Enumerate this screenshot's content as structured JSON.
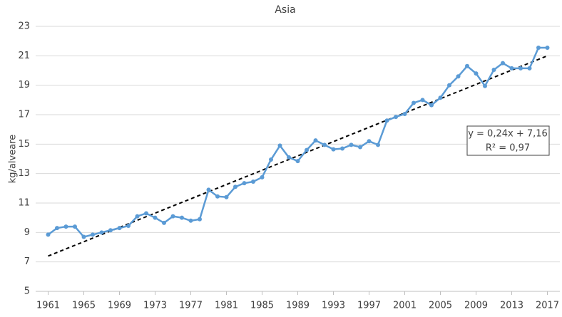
{
  "chart_data": {
    "type": "line",
    "title": "Asia",
    "y_label": "kg/alveare",
    "x": [
      1961,
      1962,
      1963,
      1964,
      1965,
      1966,
      1967,
      1968,
      1969,
      1970,
      1971,
      1972,
      1973,
      1974,
      1975,
      1976,
      1977,
      1978,
      1979,
      1980,
      1981,
      1982,
      1983,
      1984,
      1985,
      1986,
      1987,
      1988,
      1989,
      1990,
      1991,
      1992,
      1993,
      1994,
      1995,
      1996,
      1997,
      1998,
      1999,
      2000,
      2001,
      2002,
      2003,
      2004,
      2005,
      2006,
      2007,
      2008,
      2009,
      2010,
      2011,
      2012,
      2013,
      2014,
      2015,
      2016,
      2017
    ],
    "series": [
      {
        "name": "Asia",
        "color": "#5b9bd5",
        "values": [
          8.85,
          9.3,
          9.4,
          9.4,
          8.7,
          8.85,
          9.0,
          9.15,
          9.3,
          9.45,
          10.1,
          10.3,
          10.0,
          9.65,
          10.1,
          10.0,
          9.8,
          9.9,
          11.9,
          11.45,
          11.4,
          12.1,
          12.35,
          12.45,
          12.75,
          13.95,
          14.9,
          14.1,
          13.85,
          14.6,
          15.25,
          14.95,
          14.65,
          14.7,
          14.95,
          14.8,
          15.2,
          14.95,
          16.6,
          16.85,
          17.05,
          17.8,
          18.0,
          17.65,
          18.15,
          19.0,
          19.6,
          20.3,
          19.8,
          18.95,
          20.05,
          20.5,
          20.15,
          20.15,
          20.15,
          21.55,
          21.55
        ]
      }
    ],
    "trendline": {
      "x": [
        1961,
        2017
      ],
      "values": [
        7.4,
        21.0
      ],
      "color": "#000000"
    },
    "annotation": [
      "y = 0,24x + 7,16",
      "R² = 0,97"
    ],
    "xlim": [
      1959.6,
      2018.4
    ],
    "xticks": [
      1961,
      1965,
      1969,
      1973,
      1977,
      1981,
      1985,
      1989,
      1993,
      1997,
      2001,
      2005,
      2009,
      2013,
      2017
    ],
    "ylim": [
      5,
      23
    ],
    "yticks": [
      5,
      7,
      9,
      11,
      13,
      15,
      17,
      19,
      21,
      23
    ],
    "grid": true
  }
}
